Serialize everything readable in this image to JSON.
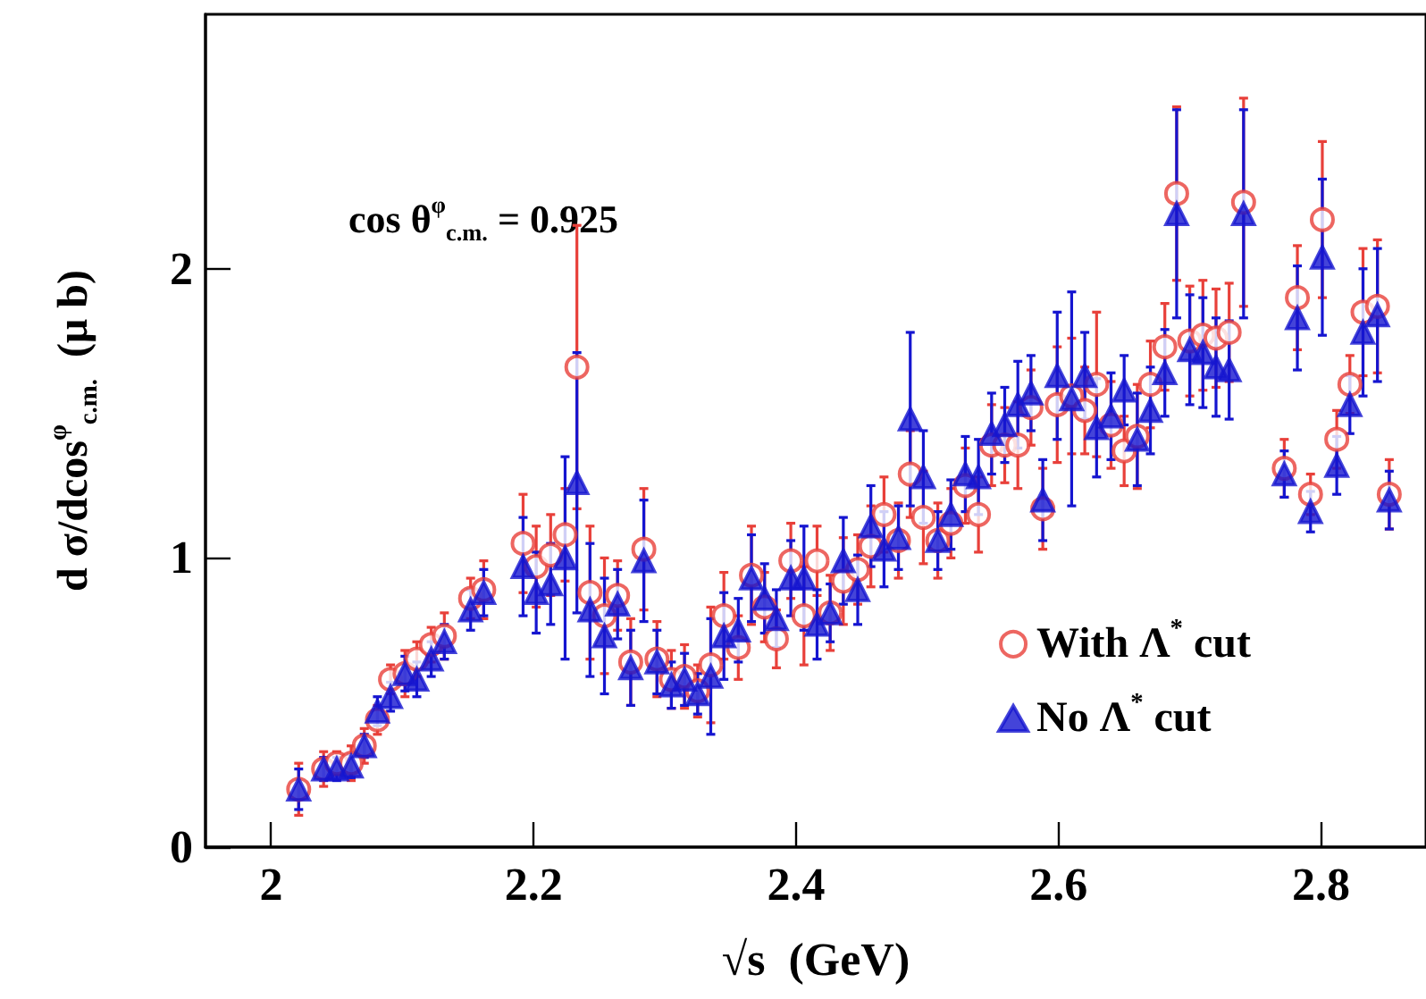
{
  "chart_data": {
    "type": "scatter",
    "xlabel": "√s  (GeV)",
    "ylabel": "d σ/dcos$^{φ}$$_{c.m.}$  (μ b)",
    "annotations": [
      "cos θ$^{φ}$$_{c.m.}$ = 0.925"
    ],
    "x": [
      2.021,
      2.04,
      2.05,
      2.061,
      2.071,
      2.081,
      2.091,
      2.102,
      2.111,
      2.122,
      2.132,
      2.152,
      2.162,
      2.192,
      2.202,
      2.213,
      2.224,
      2.233,
      2.243,
      2.254,
      2.264,
      2.274,
      2.284,
      2.294,
      2.305,
      2.315,
      2.325,
      2.335,
      2.345,
      2.356,
      2.366,
      2.376,
      2.385,
      2.396,
      2.406,
      2.416,
      2.426,
      2.436,
      2.447,
      2.457,
      2.467,
      2.478,
      2.487,
      2.497,
      2.508,
      2.518,
      2.529,
      2.539,
      2.549,
      2.559,
      2.569,
      2.579,
      2.588,
      2.599,
      2.61,
      2.62,
      2.629,
      2.64,
      2.65,
      2.66,
      2.67,
      2.681,
      2.69,
      2.7,
      2.71,
      2.72,
      2.73,
      2.741,
      2.772,
      2.782,
      2.792,
      2.801,
      2.812,
      2.822,
      2.832,
      2.843,
      2.852
    ],
    "series": [
      {
        "name": "With Λ$^{*}$ cut",
        "color": "#e8403a",
        "marker": "circle",
        "values": [
          0.2,
          0.27,
          0.29,
          0.29,
          0.35,
          0.44,
          0.58,
          0.6,
          0.65,
          0.7,
          0.73,
          0.86,
          0.89,
          1.05,
          0.97,
          1.01,
          1.08,
          1.66,
          0.88,
          0.8,
          0.87,
          0.64,
          1.03,
          0.65,
          0.58,
          0.59,
          0.54,
          0.63,
          0.8,
          0.69,
          0.94,
          0.83,
          0.72,
          0.99,
          0.8,
          0.99,
          0.81,
          0.92,
          0.96,
          1.04,
          1.15,
          1.06,
          1.29,
          1.14,
          1.06,
          1.12,
          1.25,
          1.15,
          1.39,
          1.39,
          1.39,
          1.52,
          1.17,
          1.53,
          1.56,
          1.51,
          1.6,
          1.46,
          1.37,
          1.42,
          1.6,
          1.73,
          2.26,
          1.75,
          1.77,
          1.76,
          1.78,
          2.23,
          1.31,
          1.9,
          1.22,
          2.17,
          1.41,
          1.6,
          1.85,
          1.87,
          1.22
        ],
        "errors": [
          0.09,
          0.06,
          0.04,
          0.06,
          0.06,
          0.05,
          0.05,
          0.08,
          0.06,
          0.06,
          0.08,
          0.07,
          0.1,
          0.17,
          0.14,
          0.14,
          0.16,
          0.49,
          0.23,
          0.2,
          0.12,
          0.15,
          0.21,
          0.13,
          0.1,
          0.11,
          0.09,
          0.2,
          0.15,
          0.11,
          0.17,
          0.12,
          0.1,
          0.13,
          0.17,
          0.12,
          0.13,
          0.15,
          0.12,
          0.14,
          0.13,
          0.13,
          0.15,
          0.16,
          0.13,
          0.12,
          0.13,
          0.13,
          0.14,
          0.13,
          0.15,
          0.13,
          0.14,
          0.2,
          0.2,
          0.15,
          0.25,
          0.15,
          0.12,
          0.18,
          0.15,
          0.15,
          0.3,
          0.19,
          0.19,
          0.17,
          0.17,
          0.36,
          0.1,
          0.18,
          0.07,
          0.27,
          0.1,
          0.1,
          0.22,
          0.23,
          0.12
        ]
      },
      {
        "name": "No Λ$^{*}$ cut",
        "color": "#1515d0",
        "marker": "triangle",
        "values": [
          0.2,
          0.27,
          0.27,
          0.28,
          0.35,
          0.47,
          0.52,
          0.6,
          0.58,
          0.65,
          0.71,
          0.82,
          0.88,
          0.97,
          0.88,
          0.91,
          1.0,
          1.26,
          0.82,
          0.73,
          0.84,
          0.62,
          0.99,
          0.64,
          0.56,
          0.58,
          0.53,
          0.59,
          0.73,
          0.75,
          0.93,
          0.86,
          0.79,
          0.93,
          0.93,
          0.77,
          0.81,
          0.99,
          0.89,
          1.11,
          1.03,
          1.07,
          1.48,
          1.28,
          1.06,
          1.15,
          1.29,
          1.28,
          1.43,
          1.46,
          1.53,
          1.57,
          1.2,
          1.63,
          1.55,
          1.63,
          1.45,
          1.49,
          1.58,
          1.41,
          1.51,
          1.64,
          2.19,
          1.72,
          1.71,
          1.66,
          1.65,
          2.19,
          1.29,
          1.83,
          1.16,
          2.04,
          1.32,
          1.53,
          1.78,
          1.84,
          1.2
        ],
        "errors": [
          0.07,
          0.04,
          0.04,
          0.04,
          0.04,
          0.05,
          0.05,
          0.06,
          0.06,
          0.06,
          0.06,
          0.07,
          0.08,
          0.17,
          0.14,
          0.14,
          0.35,
          0.45,
          0.23,
          0.2,
          0.12,
          0.13,
          0.21,
          0.11,
          0.08,
          0.09,
          0.07,
          0.2,
          0.15,
          0.11,
          0.15,
          0.12,
          0.1,
          0.13,
          0.18,
          0.12,
          0.1,
          0.15,
          0.12,
          0.14,
          0.13,
          0.11,
          0.3,
          0.16,
          0.1,
          0.12,
          0.13,
          0.13,
          0.14,
          0.13,
          0.15,
          0.13,
          0.14,
          0.22,
          0.37,
          0.15,
          0.17,
          0.15,
          0.12,
          0.16,
          0.15,
          0.15,
          0.36,
          0.19,
          0.19,
          0.17,
          0.17,
          0.36,
          0.08,
          0.18,
          0.07,
          0.27,
          0.1,
          0.1,
          0.22,
          0.23,
          0.1
        ]
      }
    ],
    "xlim": [
      1.95,
      2.88
    ],
    "xticks": [
      2,
      2.2,
      2.4,
      2.6,
      2.8
    ],
    "ylim": [
      0,
      2.88
    ],
    "yticks": [
      0,
      1,
      2
    ],
    "grid": false,
    "legend": "bottom right"
  }
}
